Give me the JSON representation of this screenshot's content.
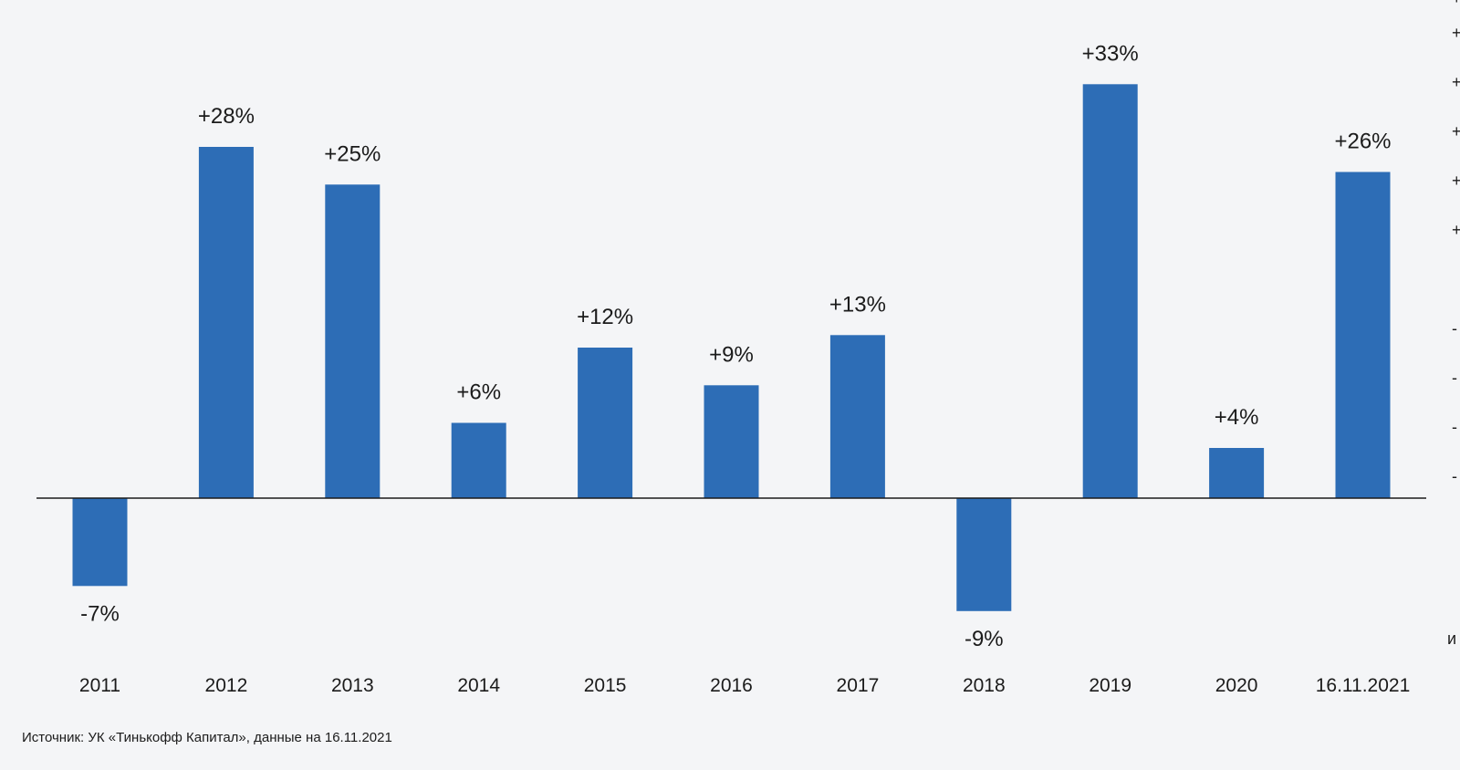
{
  "chart_data": {
    "type": "bar",
    "categories": [
      "2011",
      "2012",
      "2013",
      "2014",
      "2015",
      "2016",
      "2017",
      "2018",
      "2019",
      "2020",
      "16.11.2021"
    ],
    "values": [
      -7,
      28,
      25,
      6,
      12,
      9,
      13,
      -9,
      33,
      4,
      26
    ],
    "value_labels": [
      "-7%",
      "+28%",
      "+25%",
      "+6%",
      "+12%",
      "+9%",
      "+13%",
      "-9%",
      "+33%",
      "+4%",
      "+26%"
    ],
    "unit": "%",
    "title": "",
    "xlabel": "",
    "ylabel": "",
    "ylim": [
      -12,
      35
    ],
    "grid": false,
    "legend": "none",
    "bar_color": "#2d6db6",
    "baseline_color": "#1b1b1b"
  },
  "source_note": "Источник: УК «Тинькофф Капитал», данные на 16.11.2021",
  "edge_marks": [
    "+",
    "+",
    "+",
    "+",
    "+",
    "+",
    "-",
    "-",
    "-",
    "-",
    "и"
  ]
}
